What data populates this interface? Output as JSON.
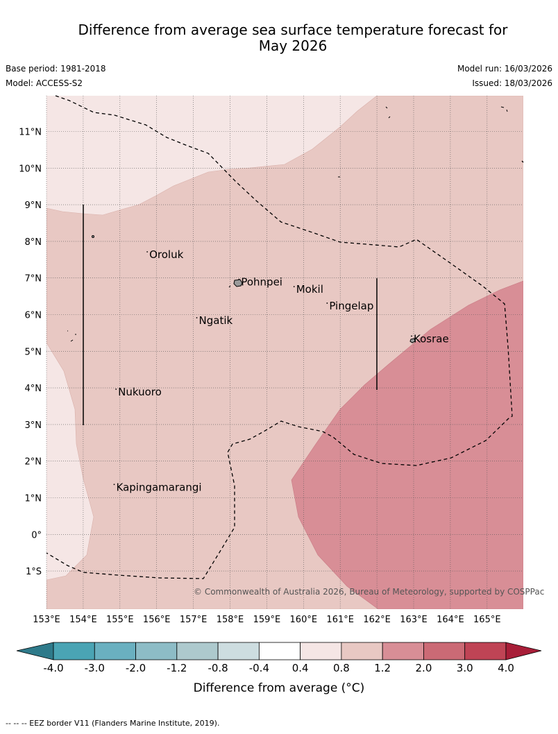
{
  "header": {
    "title_line1": "Difference from average sea surface temperature forecast for",
    "title_line2": "May 2026",
    "base_period": "Base period: 1981-2018",
    "model": "Model: ACCESS-S2",
    "model_run": "Model run: 16/03/2026",
    "issued": "Issued: 18/03/2026"
  },
  "map": {
    "lat_labels": [
      "11°N",
      "10°N",
      "9°N",
      "8°N",
      "7°N",
      "6°N",
      "5°N",
      "4°N",
      "3°N",
      "2°N",
      "1°N",
      "0°",
      "1°S"
    ],
    "lon_labels": [
      "153°E",
      "154°E",
      "155°E",
      "156°E",
      "157°E",
      "158°E",
      "159°E",
      "160°E",
      "161°E",
      "162°E",
      "163°E",
      "164°E",
      "165°E"
    ],
    "places": [
      {
        "name": "Oroluk",
        "lon": 155.8,
        "lat": 7.6
      },
      {
        "name": "Pohnpei",
        "lon": 158.3,
        "lat": 6.85
      },
      {
        "name": "Mokil",
        "lon": 159.8,
        "lat": 6.65
      },
      {
        "name": "Pingelap",
        "lon": 160.7,
        "lat": 6.2
      },
      {
        "name": "Ngatik",
        "lon": 157.15,
        "lat": 5.8
      },
      {
        "name": "Kosrae",
        "lon": 163.0,
        "lat": 5.3
      },
      {
        "name": "Nukuoro",
        "lon": 154.95,
        "lat": 3.85
      },
      {
        "name": "Kapingamarangi",
        "lon": 154.9,
        "lat": 1.25
      }
    ],
    "copyright": "© Commonwealth of Australia 2026, Bureau of Meteorology, supported by COSPPac"
  },
  "colorbar": {
    "label": "Difference from average (°C)",
    "ticks": [
      "-4.0",
      "-3.0",
      "-2.0",
      "-1.2",
      "-0.8",
      "-0.4",
      "0.4",
      "0.8",
      "1.2",
      "2.0",
      "3.0",
      "4.0"
    ],
    "colors": [
      "#4aa4b4",
      "#6ab0c0",
      "#8dbcc6",
      "#adc9cd",
      "#cddde0",
      "#ffffff",
      "#f5e6e5",
      "#e8c8c3",
      "#d88e96",
      "#cb6a75",
      "#bf4455"
    ],
    "under_color": "#2e7a8a",
    "over_color": "#a81e38"
  },
  "footer": {
    "note": "--  --  -- EEZ border V11 (Flanders Marine Institute, 2019)."
  }
}
